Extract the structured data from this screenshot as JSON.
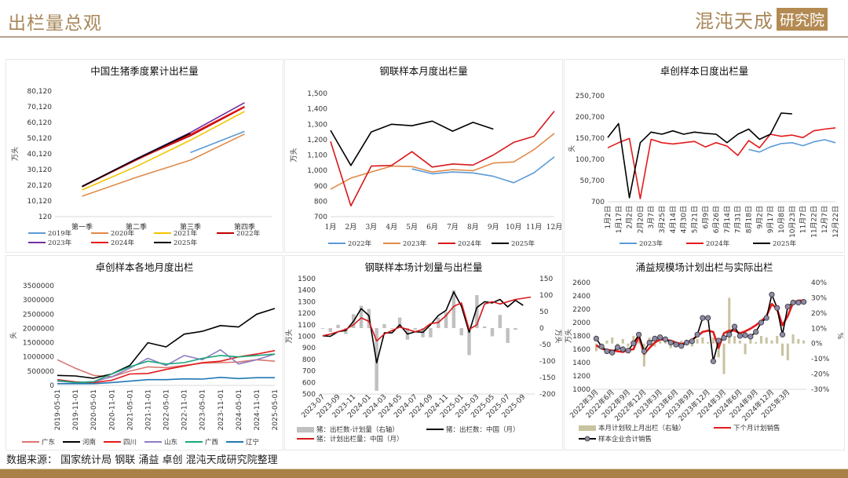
{
  "header": {
    "title": "出栏量总观",
    "brand_name": "混沌天成",
    "brand_tag": "研究院"
  },
  "footer": {
    "source": "数据来源： 国家统计局 钢联 涌益 卓创 混沌天成研究院整理"
  },
  "colors": {
    "accent": "#a8875a",
    "footer_bar": "#a98047"
  },
  "chart_data": [
    {
      "id": "c1",
      "type": "line",
      "title": "中国生猪季度累计出栏量",
      "ylabel": "万头",
      "ylim": [
        120,
        80120
      ],
      "yticks": [
        120,
        10120,
        20120,
        30120,
        40120,
        50120,
        60120,
        70120,
        80120
      ],
      "ytick_labels": [
        "120",
        "10,120",
        "20,120",
        "30,120",
        "40,120",
        "50,120",
        "60,120",
        "70,120",
        "80,120"
      ],
      "categories": [
        "第一季",
        "第二季",
        "第三季",
        "第四季"
      ],
      "legend": "bottom",
      "series": [
        {
          "name": "2019年",
          "color": "#5b9bd5",
          "values": [
            null,
            null,
            40900,
            54400
          ]
        },
        {
          "name": "2020年",
          "color": "#e08a4a",
          "values": [
            13100,
            25100,
            36100,
            52700
          ]
        },
        {
          "name": "2021年",
          "color": "#f2c500",
          "values": [
            17100,
            32000,
            48800,
            67100
          ]
        },
        {
          "name": "2022年",
          "color": "#c00000",
          "values": [
            19100,
            36400,
            51600,
            69900
          ]
        },
        {
          "name": "2023年",
          "color": "#7030a0",
          "values": [
            19400,
            36900,
            53700,
            72700
          ]
        },
        {
          "name": "2024年",
          "color": "#e31a1c",
          "values": [
            19200,
            36100,
            52500,
            70300
          ]
        },
        {
          "name": "2025年",
          "color": "#000000",
          "values": [
            19300,
            36700,
            53200,
            null
          ]
        }
      ]
    },
    {
      "id": "c2",
      "type": "line",
      "title": "钢联样本月度出栏量",
      "ylabel": "万头",
      "ylim": [
        700,
        1500
      ],
      "yticks": [
        700,
        800,
        900,
        1000,
        1100,
        1200,
        1300,
        1400,
        1500
      ],
      "ytick_labels": [
        "700",
        "800",
        "900",
        "1,000",
        "1,100",
        "1,200",
        "1,300",
        "1,400",
        "1,500"
      ],
      "categories": [
        "1月",
        "2月",
        "3月",
        "4月",
        "5月",
        "6月",
        "7月",
        "8月",
        "9月",
        "10月",
        "11月",
        "12月"
      ],
      "legend": "bottom",
      "series": [
        {
          "name": "2022年",
          "color": "#5b9bd5",
          "values": [
            null,
            null,
            null,
            null,
            1010,
            978,
            990,
            984,
            962,
            920,
            985,
            1088
          ]
        },
        {
          "name": "2023年",
          "color": "#e08a4a",
          "values": [
            878,
            950,
            990,
            1028,
            1025,
            990,
            1005,
            998,
            1048,
            1055,
            1135,
            1240
          ]
        },
        {
          "name": "2024年",
          "color": "#d7191c",
          "values": [
            1188,
            770,
            1028,
            1032,
            1122,
            1022,
            1042,
            1035,
            1100,
            1182,
            1222,
            1385
          ]
        },
        {
          "name": "2025年",
          "color": "#000000",
          "values": [
            1260,
            1032,
            1250,
            1300,
            1290,
            1320,
            1255,
            1312,
            1268,
            null,
            null,
            null
          ]
        }
      ]
    },
    {
      "id": "c3",
      "type": "line",
      "title": "卓创样本日度出栏量",
      "ylabel": "头",
      "ylim": [
        700,
        250700
      ],
      "yticks": [
        700,
        50700,
        100700,
        150700,
        200700,
        250700
      ],
      "ytick_labels": [
        "700",
        "50,700",
        "100,700",
        "150,700",
        "200,700",
        "250,700"
      ],
      "categories": [
        "1月2日",
        "1月17日",
        "2月2日",
        "2月20日",
        "3月7日",
        "3月25日",
        "4月14日",
        "4月30日",
        "5月21日",
        "6月9日",
        "6月26日",
        "7月14日",
        "7月31日",
        "8月18日",
        "9月2日",
        "9月17日",
        "10月8日",
        "10月23日",
        "11月7日",
        "11月22日",
        "12月7日",
        "12月22日"
      ],
      "legend": "bottom",
      "series": [
        {
          "name": "2023年",
          "color": "#5b9bd5",
          "values": [
            null,
            null,
            null,
            null,
            null,
            null,
            null,
            null,
            null,
            null,
            null,
            null,
            null,
            124000,
            118000,
            130000,
            138000,
            140000,
            133000,
            142000,
            147000,
            140000
          ]
        },
        {
          "name": "2024年",
          "color": "#e31a1c",
          "values": [
            128000,
            140000,
            150000,
            8000,
            148000,
            140000,
            137000,
            140000,
            143000,
            130000,
            140000,
            132000,
            110000,
            145000,
            128000,
            160000,
            155000,
            158000,
            152000,
            168000,
            172000,
            175000
          ]
        },
        {
          "name": "2025年",
          "color": "#000000",
          "values": [
            152000,
            185000,
            10000,
            140000,
            165000,
            160000,
            168000,
            160000,
            165000,
            162000,
            160000,
            140000,
            160000,
            172000,
            148000,
            160000,
            210000,
            208000,
            null,
            null,
            null,
            null
          ]
        }
      ]
    },
    {
      "id": "c4",
      "type": "line",
      "title": "卓创样本各地月度出栏",
      "ylabel": "头",
      "ylim": [
        0,
        3500000
      ],
      "yticks": [
        0,
        500000,
        1000000,
        1500000,
        2000000,
        2500000,
        3000000,
        3500000
      ],
      "ytick_labels": [
        "0",
        "500000",
        "1000000",
        "1500000",
        "2000000",
        "2500000",
        "3000000",
        "3500000"
      ],
      "categories": [
        "2019-05-01",
        "2019-11-01",
        "2020-05-01",
        "2020-11-01",
        "2021-05-01",
        "2021-11-01",
        "2022-05-01",
        "2022-11-01",
        "2023-05-01",
        "2023-11-01",
        "2024-05-01",
        "2024-11-01",
        "2025-05-01"
      ],
      "legend": "bottom",
      "series": [
        {
          "name": "广东",
          "color": "#d9756f",
          "values": [
            900000,
            600000,
            350000,
            300000,
            500000,
            650000,
            620000,
            700000,
            780000,
            800000,
            820000,
            900000,
            850000
          ]
        },
        {
          "name": "河南",
          "color": "#000000",
          "values": [
            350000,
            330000,
            250000,
            400000,
            700000,
            1500000,
            1350000,
            1800000,
            1900000,
            2100000,
            2050000,
            2500000,
            2700000
          ]
        },
        {
          "name": "四川",
          "color": "#e31a1c",
          "values": [
            200000,
            120000,
            100000,
            180000,
            400000,
            420000,
            560000,
            680000,
            800000,
            850000,
            1000000,
            1100000,
            1220000
          ]
        },
        {
          "name": "山东",
          "color": "#8e7cc3",
          "values": [
            150000,
            100000,
            130000,
            300000,
            600000,
            950000,
            700000,
            1050000,
            900000,
            1250000,
            750000,
            900000,
            1100000
          ]
        },
        {
          "name": "广西",
          "color": "#1aa87a",
          "values": [
            180000,
            100000,
            130000,
            400000,
            650000,
            850000,
            750000,
            800000,
            950000,
            1050000,
            1000000,
            1050000,
            1100000
          ]
        },
        {
          "name": "辽宁",
          "color": "#1f78b4",
          "values": [
            60000,
            60000,
            60000,
            100000,
            150000,
            200000,
            200000,
            230000,
            220000,
            280000,
            240000,
            270000,
            270000
          ]
        }
      ]
    },
    {
      "id": "c5",
      "type": "bar+line",
      "title": "钢联样本场计划量与出栏量",
      "ylabel": "万头",
      "y2label": "万头",
      "ylim": [
        500,
        1500
      ],
      "y2lim": [
        -200,
        150
      ],
      "yticks": [
        500,
        600,
        700,
        800,
        900,
        1000,
        1100,
        1200,
        1300,
        1400,
        1500
      ],
      "y2ticks": [
        -200,
        -150,
        -100,
        -50,
        0,
        50,
        100,
        150
      ],
      "categories": [
        "2023-07",
        "2023-08",
        "2023-09",
        "2023-10",
        "2023-11",
        "2023-12",
        "2024-01",
        "2024-02",
        "2024-03",
        "2024-04",
        "2024-05",
        "2024-06",
        "2024-07",
        "2024-08",
        "2024-09",
        "2024-10",
        "2024-11",
        "2024-12",
        "2025-01",
        "2025-02",
        "2025-03",
        "2025-04",
        "2025-05",
        "2025-06",
        "2025-07",
        "2025-08",
        "2025-09",
        "2025-10"
      ],
      "xtick_labels": [
        "2023-07",
        "2023-09",
        "2023-11",
        "2024-01",
        "2024-03",
        "2024-05",
        "2024-07",
        "2024-09",
        "2024-11",
        "2025-01",
        "2025-03",
        "2025-05",
        "2025-07",
        "2025-09"
      ],
      "legend": "bottom",
      "series": [
        {
          "name": "猪：出栏数-计划量（右轴）",
          "type": "bar",
          "axis": "right",
          "color": "#c0c0c0",
          "values": [
            -2,
            -12,
            10,
            -18,
            42,
            68,
            58,
            -190,
            12,
            -2,
            32,
            -35,
            -5,
            -28,
            -28,
            32,
            48,
            115,
            -22,
            -82,
            100,
            5,
            -25,
            40,
            -45,
            -5,
            null,
            null
          ]
        },
        {
          "name": "猪：出栏数：中国（月）",
          "type": "line",
          "axis": "left",
          "color": "#000000",
          "values": [
            1005,
            1000,
            1040,
            1050,
            1130,
            1240,
            1180,
            770,
            1030,
            1030,
            1100,
            1020,
            1040,
            1035,
            1100,
            1180,
            1225,
            1385,
            1260,
            1035,
            1250,
            1300,
            1290,
            1320,
            1255,
            1312,
            1268,
            null
          ]
        },
        {
          "name": "猪：计划出栏量：中国（月）",
          "type": "line",
          "axis": "left",
          "color": "#d7191c",
          "values": [
            1005,
            1020,
            1040,
            1060,
            1100,
            1160,
            1130,
            960,
            1020,
            1050,
            1080,
            1060,
            1040,
            1060,
            1110,
            1120,
            1180,
            1260,
            1290,
            1060,
            1100,
            1280,
            1300,
            1280,
            1300,
            1320,
            1330,
            1340
          ]
        }
      ]
    },
    {
      "id": "c6",
      "type": "bar+line",
      "title": "涌益规模场计划出栏与实际出栏",
      "ylabel": "万头",
      "y2label": "%",
      "ylim": [
        1000,
        2600
      ],
      "y2lim": [
        -30,
        40
      ],
      "yticks": [
        1000,
        1200,
        1400,
        1600,
        1800,
        2000,
        2200,
        2400,
        2600
      ],
      "y2ticks": [
        -30,
        -20,
        -10,
        0,
        10,
        20,
        30,
        40
      ],
      "y2tick_labels": [
        "-30%",
        "-20%",
        "-10%",
        "0%",
        "10%",
        "20%",
        "30%",
        "40%"
      ],
      "categories": [
        "2022年3月",
        "2022年4月",
        "2022年5月",
        "2022年6月",
        "2022年7月",
        "2022年8月",
        "2022年9月",
        "2022年10月",
        "2022年11月",
        "2022年12月",
        "2023年1月",
        "2023年2月",
        "2023年3月",
        "2023年4月",
        "2023年5月",
        "2023年6月",
        "2023年7月",
        "2023年8月",
        "2023年9月",
        "2023年10月",
        "2023年11月",
        "2023年12月",
        "2024年1月",
        "2024年2月",
        "2024年3月",
        "2024年4月",
        "2024年5月",
        "2024年6月",
        "2024年7月",
        "2024年8月",
        "2024年9月",
        "2024年10月",
        "2024年11月",
        "2024年12月",
        "2025年1月",
        "2025年2月",
        "2025年3月",
        "2025年4月",
        "2025年5月",
        "2025年6月"
      ],
      "xtick_labels": [
        "2022年3月",
        "2022年6月",
        "2022年9月",
        "2022年12月",
        "2023年3月",
        "2023年6月",
        "2023年9月",
        "2023年12月",
        "2024年3月",
        "2024年6月",
        "2024年9月",
        "2024年12月",
        "2025年3月"
      ],
      "legend": "bottom",
      "series": [
        {
          "name": "本月计划较上月出栏（右轴）",
          "type": "bar",
          "axis": "right",
          "color": "#c8c3a0",
          "values": [
            -5,
            -3,
            2,
            4,
            -1,
            3,
            -2,
            5,
            6,
            -15,
            4,
            -2,
            2,
            3,
            -3,
            -1,
            2,
            0,
            -2,
            3,
            4,
            1,
            4,
            -9,
            -20,
            30,
            5,
            2,
            -7,
            3,
            1,
            5,
            4,
            2,
            5,
            -8,
            -11,
            6,
            3,
            2
          ]
        },
        {
          "name": "下个月计划销售",
          "type": "line",
          "axis": "left",
          "color": "#e31a1c",
          "values": [
            1660,
            1610,
            1590,
            1580,
            1570,
            1560,
            1590,
            1600,
            1800,
            1530,
            1620,
            1700,
            1750,
            1740,
            1730,
            1700,
            1680,
            1700,
            1740,
            1800,
            1860,
            1880,
            1860,
            1620,
            1840,
            1880,
            1880,
            1840,
            1870,
            1910,
            1960,
            2020,
            2100,
            2280,
            2200,
            1960,
            2100,
            2300,
            2330,
            2330
          ]
        },
        {
          "name": "样本企业合计销售",
          "type": "line-marker",
          "axis": "left",
          "color": "#000000",
          "values": [
            1760,
            1640,
            1570,
            1550,
            1630,
            1600,
            1580,
            1690,
            1820,
            1570,
            1700,
            1760,
            1780,
            1750,
            1700,
            1670,
            1650,
            1700,
            1720,
            1820,
            2070,
            2070,
            1420,
            1730,
            1770,
            1820,
            1940,
            1800,
            1810,
            1790,
            1860,
            2000,
            2070,
            2420,
            2220,
            1820,
            2240,
            2300,
            2300,
            2310
          ]
        }
      ]
    }
  ]
}
